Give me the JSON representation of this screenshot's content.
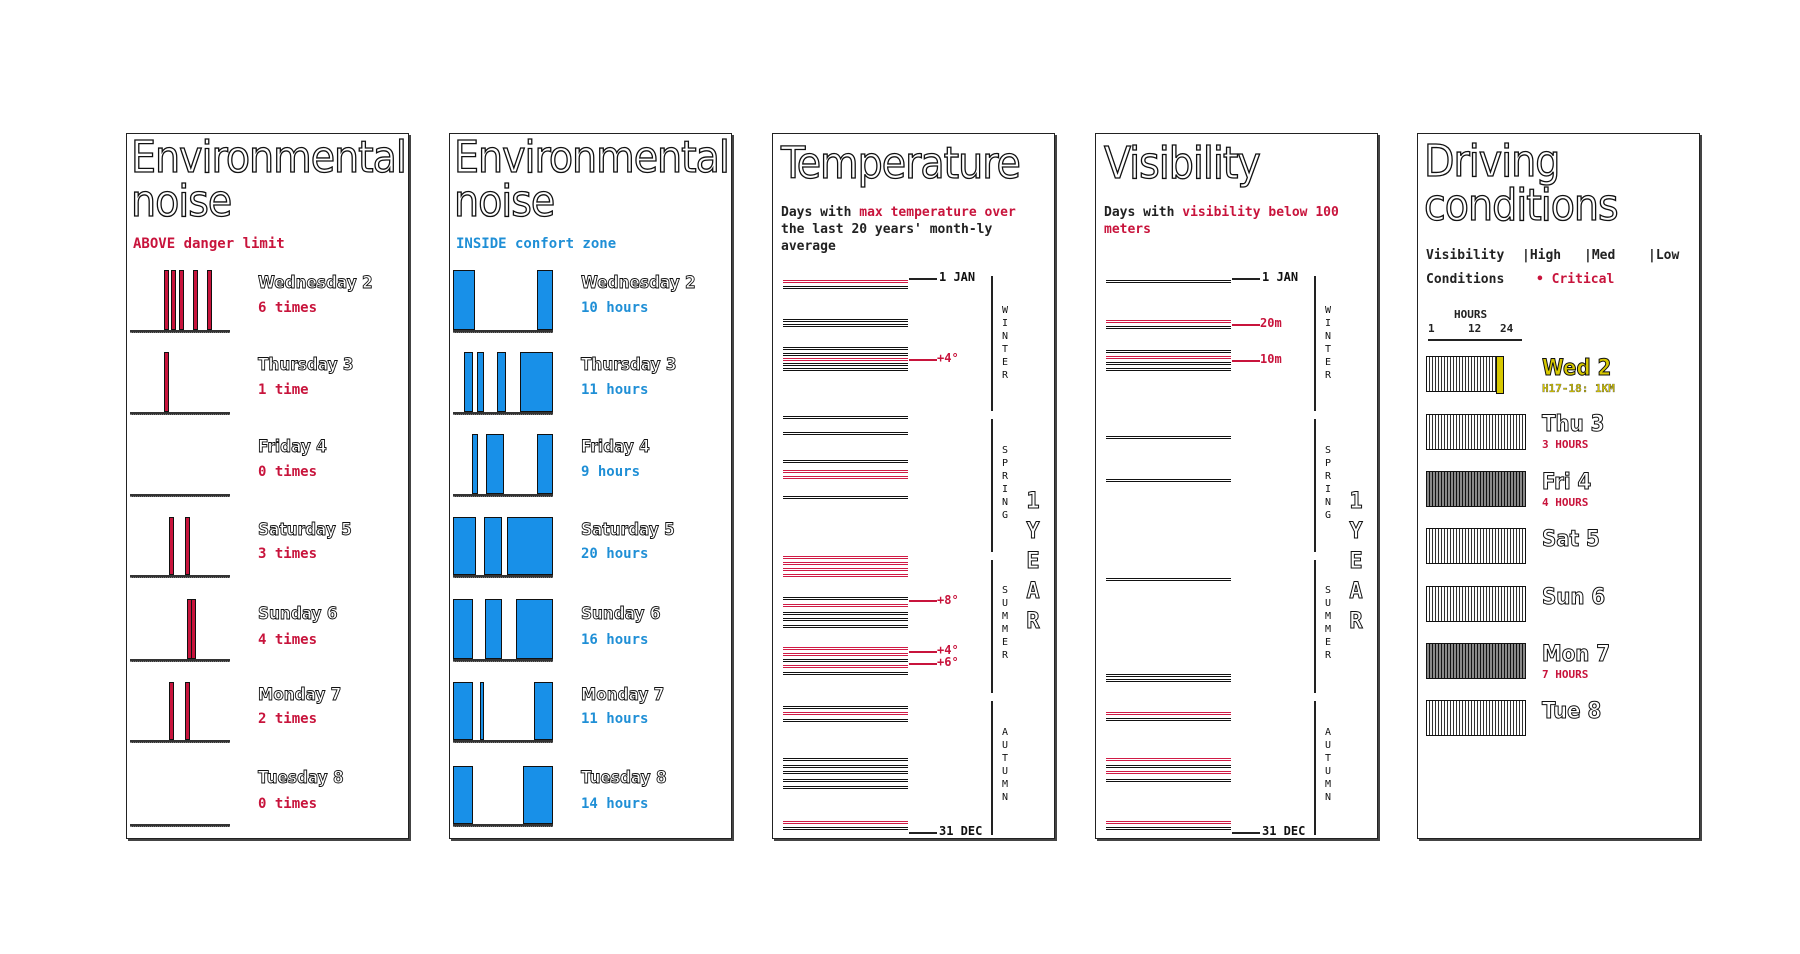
{
  "panels": {
    "noise_above": {
      "title": "Environmental noise",
      "subtitle": "ABOVE danger limit",
      "days": [
        {
          "label": "Wednesday 2",
          "value": "6 times",
          "count": 6
        },
        {
          "label": "Thursday 3",
          "value": "1 time",
          "count": 1
        },
        {
          "label": "Friday 4",
          "value": "0 times",
          "count": 0
        },
        {
          "label": "Saturday 5",
          "value": "3 times",
          "count": 3
        },
        {
          "label": "Sunday 6",
          "value": "4 times",
          "count": 4
        },
        {
          "label": "Monday 7",
          "value": "2 times",
          "count": 2
        },
        {
          "label": "Tuesday 8",
          "value": "0 times",
          "count": 0
        }
      ]
    },
    "noise_inside": {
      "title": "Environmental noise",
      "subtitle": "INSIDE confort zone",
      "days": [
        {
          "label": "Wednesday 2",
          "value": "10 hours"
        },
        {
          "label": "Thursday 3",
          "value": "11 hours"
        },
        {
          "label": "Friday 4",
          "value": "9 hours"
        },
        {
          "label": "Saturday 5",
          "value": "20 hours"
        },
        {
          "label": "Sunday 6",
          "value": "16 hours"
        },
        {
          "label": "Monday 7",
          "value": "11 hours"
        },
        {
          "label": "Tuesday 8",
          "value": "14 hours"
        }
      ]
    },
    "temperature": {
      "title": "Temperature",
      "subtitle_pre": "Days with ",
      "subtitle_hl1": "max temperature over",
      "subtitle_post": " the last 20 years' month-ly average",
      "start_label": "1 JAN",
      "end_label": "31 DEC",
      "seasons": [
        "WINTER",
        "SPRING",
        "SUMMER",
        "AUTUMN"
      ],
      "year_label": "1 YEAR",
      "callouts": [
        "+4°",
        "+8°",
        "+4°",
        "+6°"
      ]
    },
    "visibility": {
      "title": "Visibility",
      "subtitle_pre": "Days with ",
      "subtitle_hl": "visibility below 100 meters",
      "start_label": "1 JAN",
      "end_label": "31 DEC",
      "seasons": [
        "WINTER",
        "SPRING",
        "SUMMER",
        "AUTUMN"
      ],
      "year_label": "1 YEAR",
      "callouts": [
        "20m",
        "10m"
      ]
    },
    "driving": {
      "title": "Driving conditions",
      "legend": {
        "visibility": "Visibility",
        "high": "High",
        "med": "Med",
        "low": "Low",
        "conditions": "Conditions",
        "critical": "Critical"
      },
      "hours_label": "HOURS",
      "hour_ticks": [
        "1",
        "12",
        "24"
      ],
      "days": [
        {
          "label": "Wed 2",
          "sub": "H17-18: 1KM"
        },
        {
          "label": "Thu 3",
          "sub": "3 HOURS"
        },
        {
          "label": "Fri 4",
          "sub": "4 HOURS"
        },
        {
          "label": "Sat 5",
          "sub": ""
        },
        {
          "label": "Sun 6",
          "sub": ""
        },
        {
          "label": "Mon 7",
          "sub": "7 HOURS"
        },
        {
          "label": "Tue 8",
          "sub": ""
        }
      ]
    }
  },
  "colors": {
    "red": "#c8143c",
    "blue": "#1890e8",
    "yellow": "#d7c800"
  }
}
